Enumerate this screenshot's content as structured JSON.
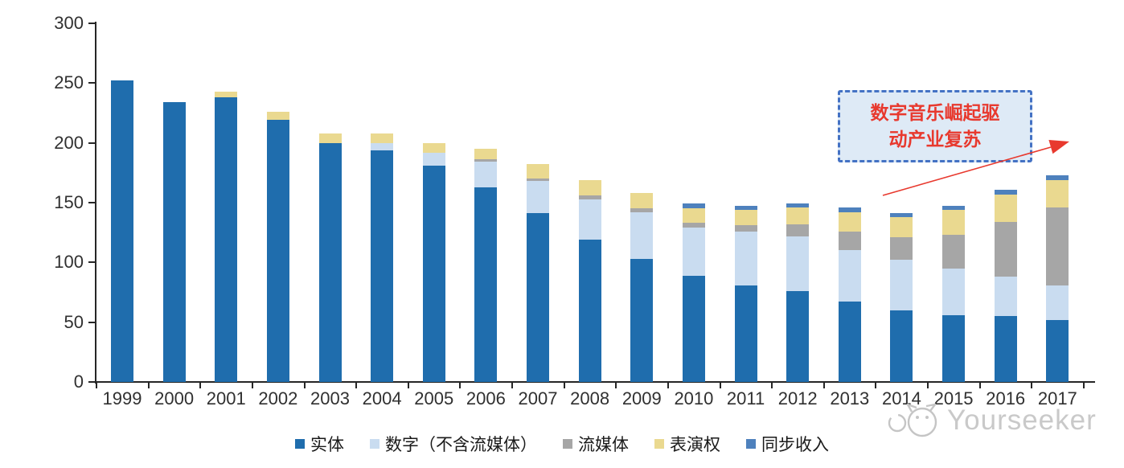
{
  "chart_data": {
    "type": "bar",
    "stacked": true,
    "title": "",
    "xlabel": "",
    "ylabel": "",
    "categories": [
      "1999",
      "2000",
      "2001",
      "2002",
      "2003",
      "2004",
      "2005",
      "2006",
      "2007",
      "2008",
      "2009",
      "2010",
      "2011",
      "2012",
      "2013",
      "2014",
      "2015",
      "2016",
      "2017"
    ],
    "series": [
      {
        "key": "physical",
        "name": "实体",
        "color": "#1F6DAD",
        "values": [
          252,
          234,
          238,
          219,
          200,
          194,
          181,
          163,
          141,
          119,
          103,
          89,
          81,
          76,
          67,
          60,
          56,
          55,
          52
        ]
      },
      {
        "key": "digital",
        "name": "数字（不含流媒体）",
        "color": "#C9DCF0",
        "values": [
          0,
          0,
          0,
          0,
          0,
          6,
          11,
          21,
          27,
          34,
          39,
          40,
          45,
          46,
          43,
          42,
          39,
          33,
          29
        ]
      },
      {
        "key": "streaming",
        "name": "流媒体",
        "color": "#A6A6A6",
        "values": [
          0,
          0,
          0,
          0,
          0,
          0,
          0,
          2,
          2,
          3,
          3,
          4,
          5,
          10,
          16,
          19,
          28,
          46,
          65
        ]
      },
      {
        "key": "performance",
        "name": "表演权",
        "color": "#EAD990",
        "values": [
          0,
          0,
          5,
          7,
          8,
          8,
          8,
          9,
          12,
          13,
          13,
          12,
          13,
          14,
          16,
          17,
          21,
          23,
          23
        ]
      },
      {
        "key": "sync",
        "name": "同步收入",
        "color": "#4E81BD",
        "values": [
          0,
          0,
          0,
          0,
          0,
          0,
          0,
          0,
          0,
          0,
          0,
          4,
          3,
          3,
          4,
          3,
          3,
          4,
          4
        ]
      }
    ],
    "ylim": [
      0,
      300
    ],
    "y_ticks": [
      0,
      50,
      100,
      150,
      200,
      250,
      300
    ],
    "grid": false,
    "legend_position": "bottom"
  },
  "annotation": {
    "line1": "数字音乐崛起驱",
    "line2": "动产业复苏",
    "border_color": "#4472C4",
    "fill_color": "#DEEAF6",
    "text_color": "#E8392E",
    "arrow_color": "#E8392E"
  },
  "watermark": {
    "brand": "Yourseeker",
    "color": "#C9C9C9"
  },
  "axis_color": "#262626"
}
